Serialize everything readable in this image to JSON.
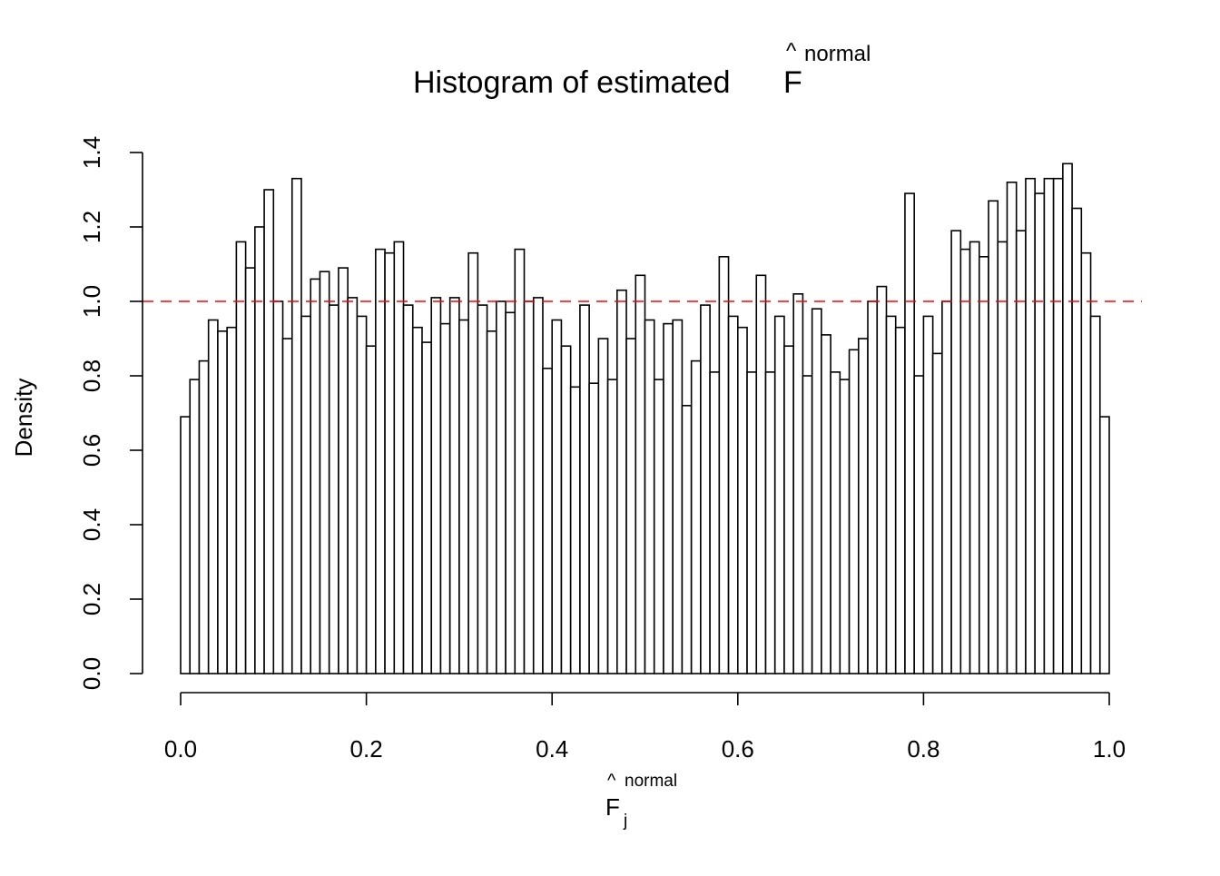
{
  "chart_data": {
    "type": "bar",
    "title": {
      "prefix": "Histogram of estimated ",
      "symbol": "F",
      "hat": "^",
      "superscript": "normal"
    },
    "xlabel": {
      "symbol": "F",
      "hat": "^",
      "subscript": "j",
      "superscript": "normal"
    },
    "ylabel": "Density",
    "xlim": [
      0,
      1
    ],
    "ylim": [
      0,
      1.4
    ],
    "bin_width": 0.01,
    "x_ticks": [
      "0.0",
      "0.2",
      "0.4",
      "0.6",
      "0.8",
      "1.0"
    ],
    "y_ticks": [
      "0.0",
      "0.2",
      "0.4",
      "0.6",
      "0.8",
      "1.0",
      "1.2",
      "1.4"
    ],
    "reference_line": {
      "y": 1.0,
      "color": "#ff0000",
      "style": "dashed"
    },
    "bar_fill": "#ffffff",
    "bar_stroke": "#000000",
    "grid": false,
    "values": [
      0.69,
      0.79,
      0.84,
      0.95,
      0.92,
      0.93,
      1.16,
      1.09,
      1.2,
      1.3,
      1.0,
      0.9,
      1.33,
      0.96,
      1.06,
      1.08,
      0.99,
      1.09,
      1.01,
      0.96,
      0.88,
      1.14,
      1.13,
      1.16,
      0.99,
      0.93,
      0.89,
      1.01,
      0.94,
      1.01,
      0.95,
      1.13,
      0.99,
      0.92,
      1.0,
      0.97,
      1.14,
      1.0,
      1.01,
      0.82,
      0.95,
      0.88,
      0.77,
      0.99,
      0.78,
      0.9,
      0.79,
      1.03,
      0.9,
      1.07,
      0.95,
      0.79,
      0.94,
      0.95,
      0.72,
      0.84,
      0.99,
      0.81,
      1.12,
      0.96,
      0.93,
      0.81,
      1.07,
      0.81,
      0.96,
      0.88,
      1.02,
      0.8,
      0.98,
      0.91,
      0.81,
      0.79,
      0.87,
      0.9,
      1.0,
      1.04,
      0.96,
      0.93,
      1.29,
      0.8,
      0.96,
      0.86,
      1.0,
      1.19,
      1.14,
      1.16,
      1.12,
      1.27,
      1.16,
      1.32,
      1.19,
      1.33,
      1.29,
      1.33,
      1.33,
      1.37,
      1.25,
      1.13,
      0.96,
      0.69
    ]
  }
}
